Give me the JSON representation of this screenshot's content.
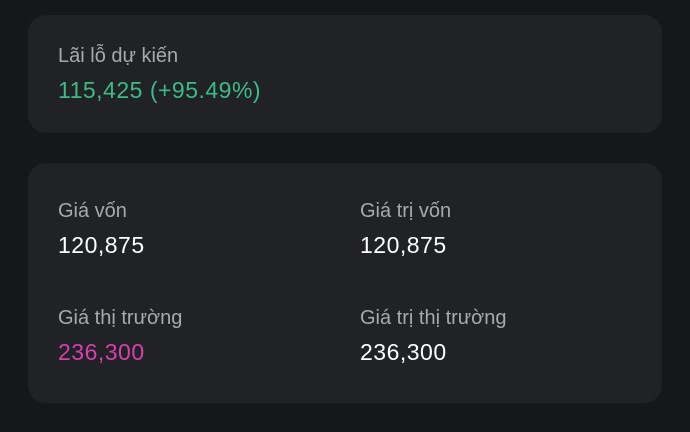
{
  "summary": {
    "label": "Lãi lỗ dự kiến",
    "value": "115,425 (+95.49%)"
  },
  "stats": [
    {
      "label": "Giá vốn",
      "value": "120,875"
    },
    {
      "label": "Giá trị vốn",
      "value": "120,875"
    },
    {
      "label": "Giá thị trường",
      "value": "236,300"
    },
    {
      "label": "Giá trị thị trường",
      "value": "236,300"
    }
  ]
}
